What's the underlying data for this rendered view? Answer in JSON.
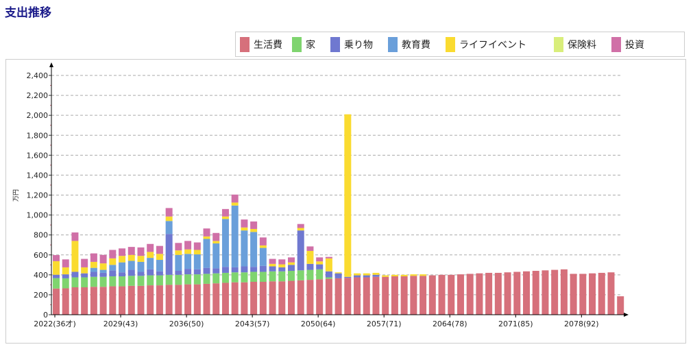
{
  "title": "支出推移",
  "chart_data": {
    "type": "bar",
    "stacked": true,
    "title": "支出推移",
    "xlabel": "",
    "ylabel": "万円",
    "ylim": [
      0,
      2400
    ],
    "yticks": [
      "0",
      "200",
      "400",
      "600",
      "800",
      "1,000",
      "1,200",
      "1,400",
      "1,600",
      "1,800",
      "2,000",
      "2,200",
      "2,400"
    ],
    "xtick_labels": [
      "2022(36才)",
      "2029(43)",
      "2036(50)",
      "2043(57)",
      "2050(64)",
      "2057(71)",
      "2064(78)",
      "2071(85)",
      "2078(92)"
    ],
    "grid": true,
    "legend_position": "top-right",
    "x_start": 2022,
    "x_end": 2082,
    "series": [
      {
        "name": "生活費",
        "color": "#d6707b",
        "values": [
          263,
          265,
          275,
          275,
          280,
          280,
          285,
          285,
          290,
          290,
          295,
          295,
          300,
          300,
          305,
          305,
          310,
          315,
          320,
          325,
          325,
          330,
          330,
          335,
          335,
          340,
          345,
          350,
          355,
          360,
          365,
          370,
          375,
          375,
          380,
          380,
          385,
          385,
          390,
          390,
          395,
          400,
          400,
          405,
          410,
          415,
          420,
          420,
          425,
          430,
          435,
          440,
          445,
          450,
          455,
          410,
          410,
          415,
          420,
          425,
          185
        ]
      },
      {
        "name": "家",
        "color": "#7fd46f",
        "values": [
          104,
          100,
          100,
          100,
          100,
          100,
          100,
          100,
          100,
          100,
          100,
          100,
          100,
          100,
          100,
          100,
          100,
          100,
          100,
          100,
          100,
          100,
          100,
          100,
          100,
          100,
          100,
          100,
          100,
          15,
          0,
          0,
          0,
          0,
          0,
          0,
          0,
          0,
          0,
          0,
          0,
          0,
          0,
          0,
          0,
          0,
          0,
          0,
          0,
          0,
          0,
          0,
          0,
          0,
          0,
          0,
          0,
          0,
          0,
          0,
          0
        ]
      },
      {
        "name": "乗り物",
        "color": "#6f78d0",
        "values": [
          34,
          40,
          55,
          40,
          50,
          40,
          60,
          40,
          60,
          40,
          60,
          40,
          410,
          40,
          55,
          50,
          60,
          50,
          60,
          50,
          60,
          50,
          60,
          50,
          40,
          60,
          400,
          60,
          50,
          60,
          50,
          10,
          20,
          20,
          20,
          0,
          0,
          0,
          0,
          0,
          0,
          0,
          0,
          0,
          0,
          0,
          0,
          0,
          0,
          0,
          0,
          0,
          0,
          0,
          0,
          0,
          0,
          0,
          0,
          0,
          0
        ]
      },
      {
        "name": "教育費",
        "color": "#6a9fda",
        "values": [
          0,
          0,
          0,
          0,
          40,
          30,
          55,
          100,
          90,
          100,
          115,
          115,
          130,
          160,
          150,
          150,
          290,
          250,
          480,
          620,
          360,
          350,
          180,
          0,
          0,
          0,
          0,
          0,
          0,
          0,
          0,
          0,
          0,
          0,
          0,
          0,
          0,
          0,
          0,
          0,
          0,
          0,
          0,
          0,
          0,
          0,
          0,
          0,
          0,
          0,
          0,
          0,
          0,
          0,
          0,
          0,
          0,
          0,
          0,
          0,
          0
        ]
      },
      {
        "name": "ライフイベント",
        "color": "#fadb30",
        "values": [
          136,
          70,
          310,
          60,
          60,
          65,
          65,
          65,
          60,
          60,
          60,
          60,
          45,
          45,
          45,
          45,
          25,
          25,
          25,
          30,
          30,
          30,
          25,
          25,
          30,
          25,
          25,
          130,
          30,
          130,
          10,
          1630,
          20,
          20,
          20,
          15,
          15,
          15,
          15,
          15,
          0,
          0,
          0,
          0,
          0,
          0,
          0,
          0,
          0,
          0,
          0,
          0,
          0,
          0,
          0,
          0,
          0,
          0,
          0,
          0,
          0
        ]
      },
      {
        "name": "保険料",
        "color": "#d9ee7b",
        "values": [
          0,
          0,
          0,
          0,
          0,
          0,
          0,
          0,
          0,
          0,
          0,
          0,
          0,
          0,
          0,
          0,
          0,
          0,
          0,
          0,
          0,
          0,
          0,
          0,
          0,
          0,
          0,
          0,
          0,
          0,
          0,
          0,
          0,
          0,
          0,
          0,
          0,
          0,
          0,
          0,
          0,
          0,
          0,
          0,
          0,
          0,
          0,
          0,
          0,
          0,
          0,
          0,
          0,
          0,
          0,
          0,
          0,
          0,
          0,
          0,
          0
        ]
      },
      {
        "name": "投資",
        "color": "#d070a7",
        "values": [
          61,
          80,
          85,
          85,
          85,
          85,
          85,
          75,
          80,
          85,
          80,
          80,
          85,
          75,
          85,
          75,
          80,
          80,
          75,
          80,
          80,
          75,
          80,
          50,
          50,
          50,
          40,
          45,
          40,
          15,
          0,
          0,
          0,
          0,
          0,
          0,
          0,
          0,
          0,
          0,
          0,
          0,
          0,
          0,
          0,
          0,
          0,
          0,
          0,
          0,
          0,
          0,
          0,
          0,
          0,
          0,
          0,
          0,
          0,
          0,
          0
        ]
      }
    ]
  }
}
